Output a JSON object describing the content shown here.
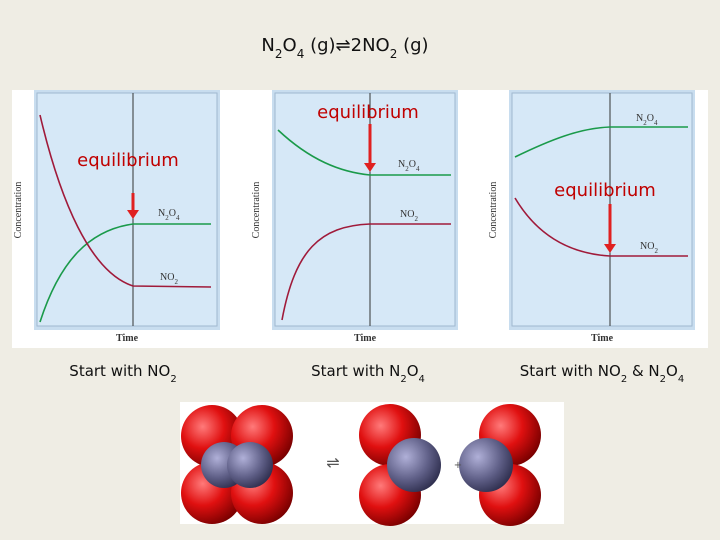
{
  "title": [
    "N",
    "2",
    "O",
    "4",
    " (g)",
    "⇌",
    "2NO",
    "2",
    " (g)"
  ],
  "panels": [
    {
      "y_label": "Concentration",
      "x_label": "Time",
      "upper_label": [
        "N",
        "2",
        "O",
        "4"
      ],
      "lower_label": [
        "NO",
        "2"
      ],
      "annotation": "equilibrium",
      "caption": [
        "Start with NO",
        "2"
      ]
    },
    {
      "y_label": "Concentration",
      "x_label": "Time",
      "upper_label": [
        "N",
        "2",
        "O",
        "4"
      ],
      "lower_label": [
        "NO",
        "2"
      ],
      "annotation": "equilibrium",
      "caption": [
        "Start with N",
        "2",
        "O",
        "4"
      ]
    },
    {
      "y_label": "Concentration",
      "x_label": "Time",
      "upper_label": [
        "N",
        "2",
        "O",
        "4"
      ],
      "lower_label": [
        "NO",
        "2"
      ],
      "annotation": "equilibrium",
      "caption": [
        "Start with NO",
        "2",
        " & N",
        "2",
        "O",
        "4"
      ]
    }
  ],
  "molecules": {
    "arrow": "⇌",
    "plus": "+"
  }
}
